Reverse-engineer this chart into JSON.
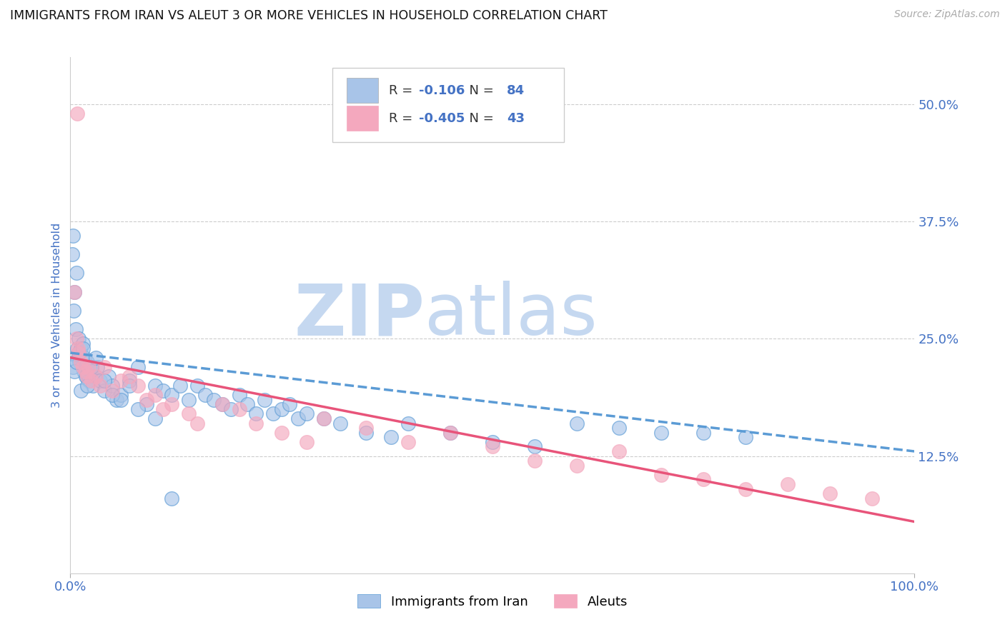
{
  "title": "IMMIGRANTS FROM IRAN VS ALEUT 3 OR MORE VEHICLES IN HOUSEHOLD CORRELATION CHART",
  "source": "Source: ZipAtlas.com",
  "ylabel": "3 or more Vehicles in Household",
  "legend_label1": "Immigrants from Iran",
  "legend_label2": "Aleuts",
  "R1": -0.106,
  "N1": 84,
  "R2": -0.405,
  "N2": 43,
  "color1": "#a8c4e8",
  "color2": "#f4a8be",
  "line_color1": "#5b9bd5",
  "line_color2": "#e8547a",
  "watermark_zip": "ZIP",
  "watermark_atlas": "atlas",
  "watermark_color_zip": "#c5d8f0",
  "watermark_color_atlas": "#c5d8f0",
  "xlim": [
    0.0,
    100.0
  ],
  "ylim": [
    0.0,
    55.0
  ],
  "yticks": [
    12.5,
    25.0,
    37.5,
    50.0
  ],
  "blue_x": [
    0.2,
    0.3,
    0.4,
    0.5,
    0.6,
    0.7,
    0.8,
    0.9,
    1.0,
    1.1,
    1.2,
    1.3,
    1.4,
    1.5,
    1.6,
    1.7,
    1.8,
    1.9,
    2.0,
    2.1,
    2.2,
    2.3,
    2.5,
    2.7,
    3.0,
    3.2,
    3.5,
    4.0,
    4.5,
    5.0,
    5.5,
    6.0,
    7.0,
    8.0,
    9.0,
    10.0,
    11.0,
    12.0,
    13.0,
    14.0,
    15.0,
    16.0,
    17.0,
    18.0,
    19.0,
    20.0,
    21.0,
    22.0,
    23.0,
    24.0,
    25.0,
    26.0,
    27.0,
    28.0,
    30.0,
    32.0,
    35.0,
    38.0,
    40.0,
    45.0,
    50.0,
    55.0,
    60.0,
    65.0,
    70.0,
    75.0,
    80.0,
    0.3,
    0.5,
    0.7,
    1.0,
    1.2,
    1.5,
    1.8,
    2.0,
    2.5,
    3.0,
    4.0,
    5.0,
    6.0,
    7.0,
    8.0,
    10.0,
    12.0
  ],
  "blue_y": [
    34.0,
    36.0,
    28.0,
    30.0,
    26.0,
    32.0,
    24.0,
    23.0,
    25.0,
    22.5,
    24.0,
    23.0,
    22.0,
    24.5,
    21.5,
    23.0,
    22.0,
    21.0,
    22.5,
    21.0,
    20.5,
    22.0,
    21.5,
    20.0,
    21.0,
    22.0,
    20.5,
    19.5,
    21.0,
    20.0,
    18.5,
    19.0,
    20.5,
    22.0,
    18.0,
    20.0,
    19.5,
    19.0,
    20.0,
    18.5,
    20.0,
    19.0,
    18.5,
    18.0,
    17.5,
    19.0,
    18.0,
    17.0,
    18.5,
    17.0,
    17.5,
    18.0,
    16.5,
    17.0,
    16.5,
    16.0,
    15.0,
    14.5,
    16.0,
    15.0,
    14.0,
    13.5,
    16.0,
    15.5,
    15.0,
    15.0,
    14.5,
    22.0,
    21.5,
    22.5,
    23.5,
    19.5,
    24.0,
    21.0,
    20.0,
    22.0,
    23.0,
    20.5,
    19.0,
    18.5,
    20.0,
    17.5,
    16.5,
    8.0
  ],
  "pink_x": [
    0.5,
    0.7,
    0.9,
    1.0,
    1.2,
    1.5,
    1.8,
    2.0,
    2.2,
    2.5,
    3.0,
    3.5,
    4.0,
    5.0,
    6.0,
    7.0,
    8.0,
    9.0,
    10.0,
    11.0,
    12.0,
    14.0,
    15.0,
    18.0,
    20.0,
    22.0,
    25.0,
    28.0,
    30.0,
    35.0,
    40.0,
    45.0,
    50.0,
    55.0,
    60.0,
    65.0,
    70.0,
    75.0,
    80.0,
    85.0,
    90.0,
    95.0,
    0.8
  ],
  "pink_y": [
    30.0,
    25.0,
    24.0,
    23.5,
    22.5,
    22.0,
    21.5,
    21.0,
    22.0,
    20.5,
    21.0,
    20.0,
    22.0,
    19.5,
    20.5,
    21.0,
    20.0,
    18.5,
    19.0,
    17.5,
    18.0,
    17.0,
    16.0,
    18.0,
    17.5,
    16.0,
    15.0,
    14.0,
    16.5,
    15.5,
    14.0,
    15.0,
    13.5,
    12.0,
    11.5,
    13.0,
    10.5,
    10.0,
    9.0,
    9.5,
    8.5,
    8.0,
    49.0
  ],
  "blue_intercept": 23.5,
  "blue_slope": -0.105,
  "pink_intercept": 23.0,
  "pink_slope": -0.175
}
